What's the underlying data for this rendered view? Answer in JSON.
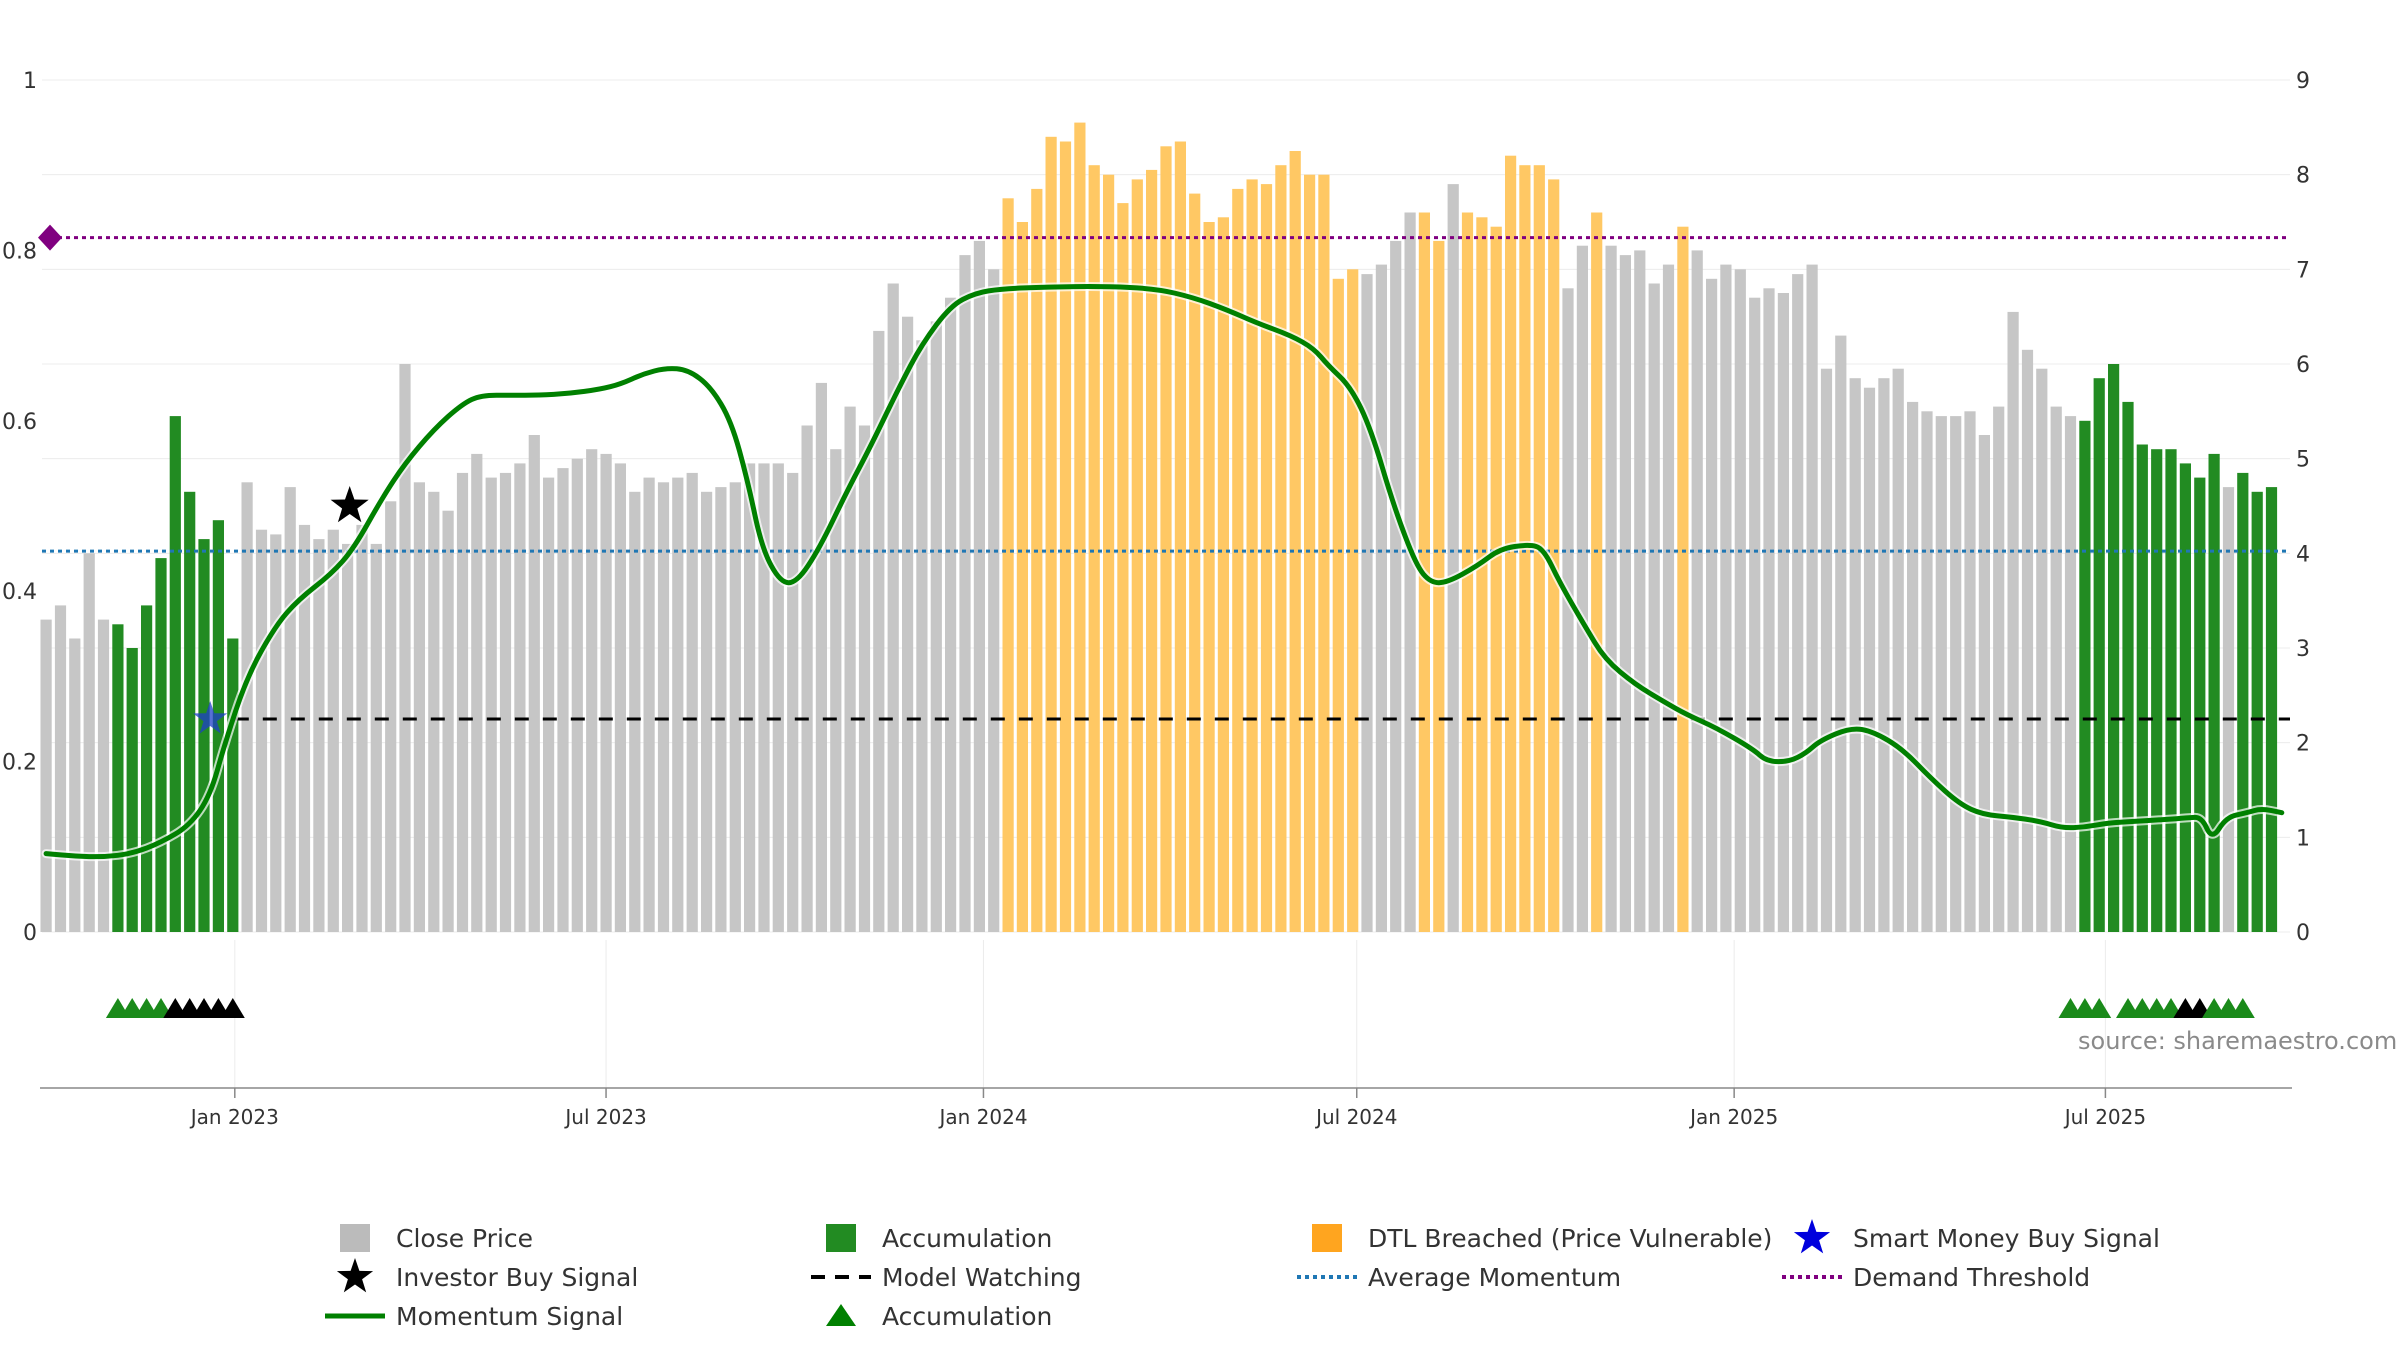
{
  "chart_data": {
    "type": "bar",
    "title": "",
    "source": "source: sharemaestro.com",
    "y_left": {
      "ticks": [
        "0",
        "0.2",
        "0.4",
        "0.6",
        "0.8",
        "1"
      ],
      "range": [
        0,
        1
      ]
    },
    "y_right": {
      "ticks": [
        "0",
        "1",
        "2",
        "3",
        "4",
        "5",
        "6",
        "7",
        "8",
        "9"
      ],
      "range": [
        0,
        9
      ]
    },
    "x_ticks": [
      {
        "label": "Jan 2023",
        "date": "2023-01-01"
      },
      {
        "label": "Jul 2023",
        "date": "2023-07-01"
      },
      {
        "label": "Jan 2024",
        "date": "2024-01-01"
      },
      {
        "label": "Jul 2024",
        "date": "2024-07-01"
      },
      {
        "label": "Jan 2025",
        "date": "2025-01-01"
      },
      {
        "label": "Jul 2025",
        "date": "2025-07-01"
      }
    ],
    "x_range": [
      "2022-09-29",
      "2025-09-29"
    ],
    "bars": {
      "start": "2022-10-01",
      "period_days": 7,
      "series": "Close Price",
      "values": [
        3.3,
        3.45,
        3.1,
        4.0,
        3.3,
        3.25,
        3.0,
        3.45,
        3.95,
        5.45,
        4.65,
        4.15,
        4.35,
        3.1,
        4.75,
        4.25,
        4.2,
        4.7,
        4.3,
        4.15,
        4.25,
        4.1,
        4.3,
        4.1,
        4.55,
        6.0,
        4.75,
        4.65,
        4.45,
        4.85,
        5.05,
        4.8,
        4.85,
        4.95,
        5.25,
        4.8,
        4.9,
        5.0,
        5.1,
        5.05,
        4.95,
        4.65,
        4.8,
        4.75,
        4.8,
        4.85,
        4.65,
        4.7,
        4.75,
        4.95,
        4.95,
        4.95,
        4.85,
        5.35,
        5.8,
        5.1,
        5.55,
        5.35,
        6.35,
        6.85,
        6.5,
        6.25,
        6.45,
        6.7,
        7.15,
        7.3,
        7.0,
        7.75,
        7.5,
        7.85,
        8.4,
        8.35,
        8.55,
        8.1,
        8.0,
        7.7,
        7.95,
        8.05,
        8.3,
        8.35,
        7.8,
        7.5,
        7.55,
        7.85,
        7.95,
        7.9,
        8.1,
        8.25,
        8.0,
        8.0,
        6.9,
        7.0,
        6.95,
        7.05,
        7.3,
        7.6,
        7.6,
        7.3,
        7.9,
        7.6,
        7.55,
        7.45,
        8.2,
        8.1,
        8.1,
        7.95,
        6.8,
        7.25,
        7.6,
        7.25,
        7.15,
        7.2,
        6.85,
        7.05,
        7.45,
        7.2,
        6.9,
        7.05,
        7.0,
        6.7,
        6.8,
        6.75,
        6.95,
        7.05,
        5.95,
        6.3,
        5.85,
        5.75,
        5.85,
        5.95,
        5.6,
        5.5,
        5.45,
        5.45,
        5.5,
        5.25,
        5.55,
        6.55,
        6.15,
        5.95,
        5.55,
        5.45,
        5.4,
        5.85,
        6.0,
        5.6,
        5.15,
        5.1,
        5.1,
        4.95,
        4.8,
        5.05,
        4.7,
        4.85,
        4.65,
        4.7
      ],
      "highlights": [
        {
          "name": "Accumulation",
          "color": "#228b22",
          "ranges": [
            [
              5,
              13
            ],
            [
              142,
              151
            ],
            [
              153,
              155
            ]
          ]
        },
        {
          "name": "DTL Breached (Price Vulnerable)",
          "color": "#ffc864",
          "ranges": [
            [
              67,
              91
            ],
            [
              96,
              97
            ],
            [
              99,
              105
            ],
            [
              108,
              108
            ],
            [
              114,
              114
            ]
          ]
        }
      ]
    },
    "momentum": {
      "name": "Momentum Signal",
      "color": "#008000",
      "points": [
        [
          "2022-10-01",
          0.092
        ],
        [
          "2022-10-15",
          0.089
        ],
        [
          "2022-10-29",
          0.088
        ],
        [
          "2022-11-12",
          0.092
        ],
        [
          "2022-11-26",
          0.105
        ],
        [
          "2022-12-10",
          0.125
        ],
        [
          "2022-12-20",
          0.16
        ],
        [
          "2022-12-27",
          0.22
        ],
        [
          "2023-01-07",
          0.3
        ],
        [
          "2023-01-21",
          0.36
        ],
        [
          "2023-02-01",
          0.39
        ],
        [
          "2023-02-17",
          0.42
        ],
        [
          "2023-02-28",
          0.45
        ],
        [
          "2023-03-14",
          0.51
        ],
        [
          "2023-03-25",
          0.55
        ],
        [
          "2023-04-08",
          0.59
        ],
        [
          "2023-04-22",
          0.62
        ],
        [
          "2023-05-01",
          0.63
        ],
        [
          "2023-05-16",
          0.63
        ],
        [
          "2023-05-29",
          0.63
        ],
        [
          "2023-06-13",
          0.632
        ],
        [
          "2023-06-28",
          0.637
        ],
        [
          "2023-07-08",
          0.643
        ],
        [
          "2023-07-19",
          0.655
        ],
        [
          "2023-07-30",
          0.662
        ],
        [
          "2023-08-10",
          0.66
        ],
        [
          "2023-08-21",
          0.64
        ],
        [
          "2023-08-31",
          0.6
        ],
        [
          "2023-09-08",
          0.53
        ],
        [
          "2023-09-15",
          0.45
        ],
        [
          "2023-09-24",
          0.41
        ],
        [
          "2023-10-02",
          0.41
        ],
        [
          "2023-10-13",
          0.45
        ],
        [
          "2023-10-27",
          0.52
        ],
        [
          "2023-11-07",
          0.57
        ],
        [
          "2023-11-21",
          0.64
        ],
        [
          "2023-12-02",
          0.69
        ],
        [
          "2023-12-16",
          0.735
        ],
        [
          "2023-12-28",
          0.75
        ],
        [
          "2024-01-10",
          0.755
        ],
        [
          "2024-02-01",
          0.757
        ],
        [
          "2024-02-29",
          0.758
        ],
        [
          "2024-03-25",
          0.755
        ],
        [
          "2024-04-12",
          0.745
        ],
        [
          "2024-04-29",
          0.73
        ],
        [
          "2024-05-13",
          0.715
        ],
        [
          "2024-05-30",
          0.7
        ],
        [
          "2024-06-10",
          0.685
        ],
        [
          "2024-06-17",
          0.665
        ],
        [
          "2024-06-28",
          0.64
        ],
        [
          "2024-07-08",
          0.59
        ],
        [
          "2024-07-19",
          0.5
        ],
        [
          "2024-07-30",
          0.43
        ],
        [
          "2024-08-06",
          0.41
        ],
        [
          "2024-08-14",
          0.41
        ],
        [
          "2024-08-29",
          0.43
        ],
        [
          "2024-09-09",
          0.45
        ],
        [
          "2024-09-23",
          0.455
        ],
        [
          "2024-09-30",
          0.45
        ],
        [
          "2024-10-08",
          0.41
        ],
        [
          "2024-10-20",
          0.36
        ],
        [
          "2024-10-30",
          0.32
        ],
        [
          "2024-11-14",
          0.29
        ],
        [
          "2024-11-28",
          0.27
        ],
        [
          "2024-12-09",
          0.255
        ],
        [
          "2024-12-23",
          0.24
        ],
        [
          "2025-01-10",
          0.215
        ],
        [
          "2025-01-17",
          0.2
        ],
        [
          "2025-01-28",
          0.2
        ],
        [
          "2025-02-05",
          0.21
        ],
        [
          "2025-02-12",
          0.225
        ],
        [
          "2025-02-27",
          0.24
        ],
        [
          "2025-03-10",
          0.235
        ],
        [
          "2025-03-24",
          0.215
        ],
        [
          "2025-04-07",
          0.18
        ],
        [
          "2025-04-21",
          0.15
        ],
        [
          "2025-05-02",
          0.138
        ],
        [
          "2025-05-16",
          0.135
        ],
        [
          "2025-05-30",
          0.13
        ],
        [
          "2025-06-10",
          0.122
        ],
        [
          "2025-06-21",
          0.123
        ],
        [
          "2025-07-02",
          0.128
        ],
        [
          "2025-07-16",
          0.13
        ],
        [
          "2025-07-30",
          0.132
        ],
        [
          "2025-08-10",
          0.134
        ],
        [
          "2025-08-17",
          0.135
        ],
        [
          "2025-08-22",
          0.108
        ],
        [
          "2025-08-29",
          0.135
        ],
        [
          "2025-09-08",
          0.14
        ],
        [
          "2025-09-15",
          0.145
        ],
        [
          "2025-09-25",
          0.14
        ]
      ]
    },
    "lines": {
      "demand_threshold": {
        "name": "Demand Threshold",
        "value": 0.815,
        "color": "#800080"
      },
      "average_momentum": {
        "name": "Average Momentum",
        "value": 0.447,
        "color": "#1f77b4"
      },
      "model_watching": {
        "name": "Model Watching",
        "value": 0.25,
        "start": "2023-01-01",
        "color": "#000000"
      }
    },
    "signals": {
      "investor_buy": {
        "name": "Investor Buy Signal",
        "date": "2023-02-26",
        "value": 0.5,
        "color": "#000000"
      },
      "smart_money_buy": {
        "name": "Smart Money Buy Signal",
        "date": "2022-12-20",
        "value": 0.25,
        "color": "#1f3fc8"
      }
    },
    "accumulation_markers": {
      "name": "Accumulation",
      "items": [
        {
          "date": "2022-11-05",
          "color": "#1a8a1a"
        },
        {
          "date": "2022-11-12",
          "color": "#1a8a1a"
        },
        {
          "date": "2022-11-19",
          "color": "#1a8a1a"
        },
        {
          "date": "2022-11-26",
          "color": "#1a8a1a"
        },
        {
          "date": "2022-12-03",
          "color": "#000000"
        },
        {
          "date": "2022-12-10",
          "color": "#000000"
        },
        {
          "date": "2022-12-17",
          "color": "#000000"
        },
        {
          "date": "2022-12-24",
          "color": "#000000"
        },
        {
          "date": "2022-12-31",
          "color": "#000000"
        },
        {
          "date": "2025-06-14",
          "color": "#1a8a1a"
        },
        {
          "date": "2025-06-21",
          "color": "#1a8a1a"
        },
        {
          "date": "2025-06-28",
          "color": "#1a8a1a"
        },
        {
          "date": "2025-07-12",
          "color": "#1a8a1a"
        },
        {
          "date": "2025-07-19",
          "color": "#1a8a1a"
        },
        {
          "date": "2025-07-26",
          "color": "#1a8a1a"
        },
        {
          "date": "2025-08-02",
          "color": "#1a8a1a"
        },
        {
          "date": "2025-08-09",
          "color": "#000000"
        },
        {
          "date": "2025-08-16",
          "color": "#000000"
        },
        {
          "date": "2025-08-23",
          "color": "#1a8a1a"
        },
        {
          "date": "2025-08-30",
          "color": "#1a8a1a"
        },
        {
          "date": "2025-09-06",
          "color": "#1a8a1a"
        }
      ]
    },
    "legend": [
      {
        "label": "Close Price",
        "symbol": "square",
        "color": "#bbbbbb"
      },
      {
        "label": "Accumulation",
        "symbol": "square",
        "color": "#228b22"
      },
      {
        "label": "DTL Breached (Price Vulnerable)",
        "symbol": "square",
        "color": "#ffa51f"
      },
      {
        "label": "Smart Money Buy Signal",
        "symbol": "star",
        "color": "#0000dd"
      },
      {
        "label": "Investor Buy Signal",
        "symbol": "star",
        "color": "#000000"
      },
      {
        "label": "Model Watching",
        "symbol": "dash",
        "color": "#000000"
      },
      {
        "label": "Average Momentum",
        "symbol": "dot",
        "color": "#1f77b4"
      },
      {
        "label": "Demand Threshold",
        "symbol": "dot",
        "color": "#800080"
      },
      {
        "label": "Momentum Signal",
        "symbol": "line",
        "color": "#008000"
      },
      {
        "label": "Accumulation",
        "symbol": "triangle",
        "color": "#008000"
      }
    ]
  }
}
